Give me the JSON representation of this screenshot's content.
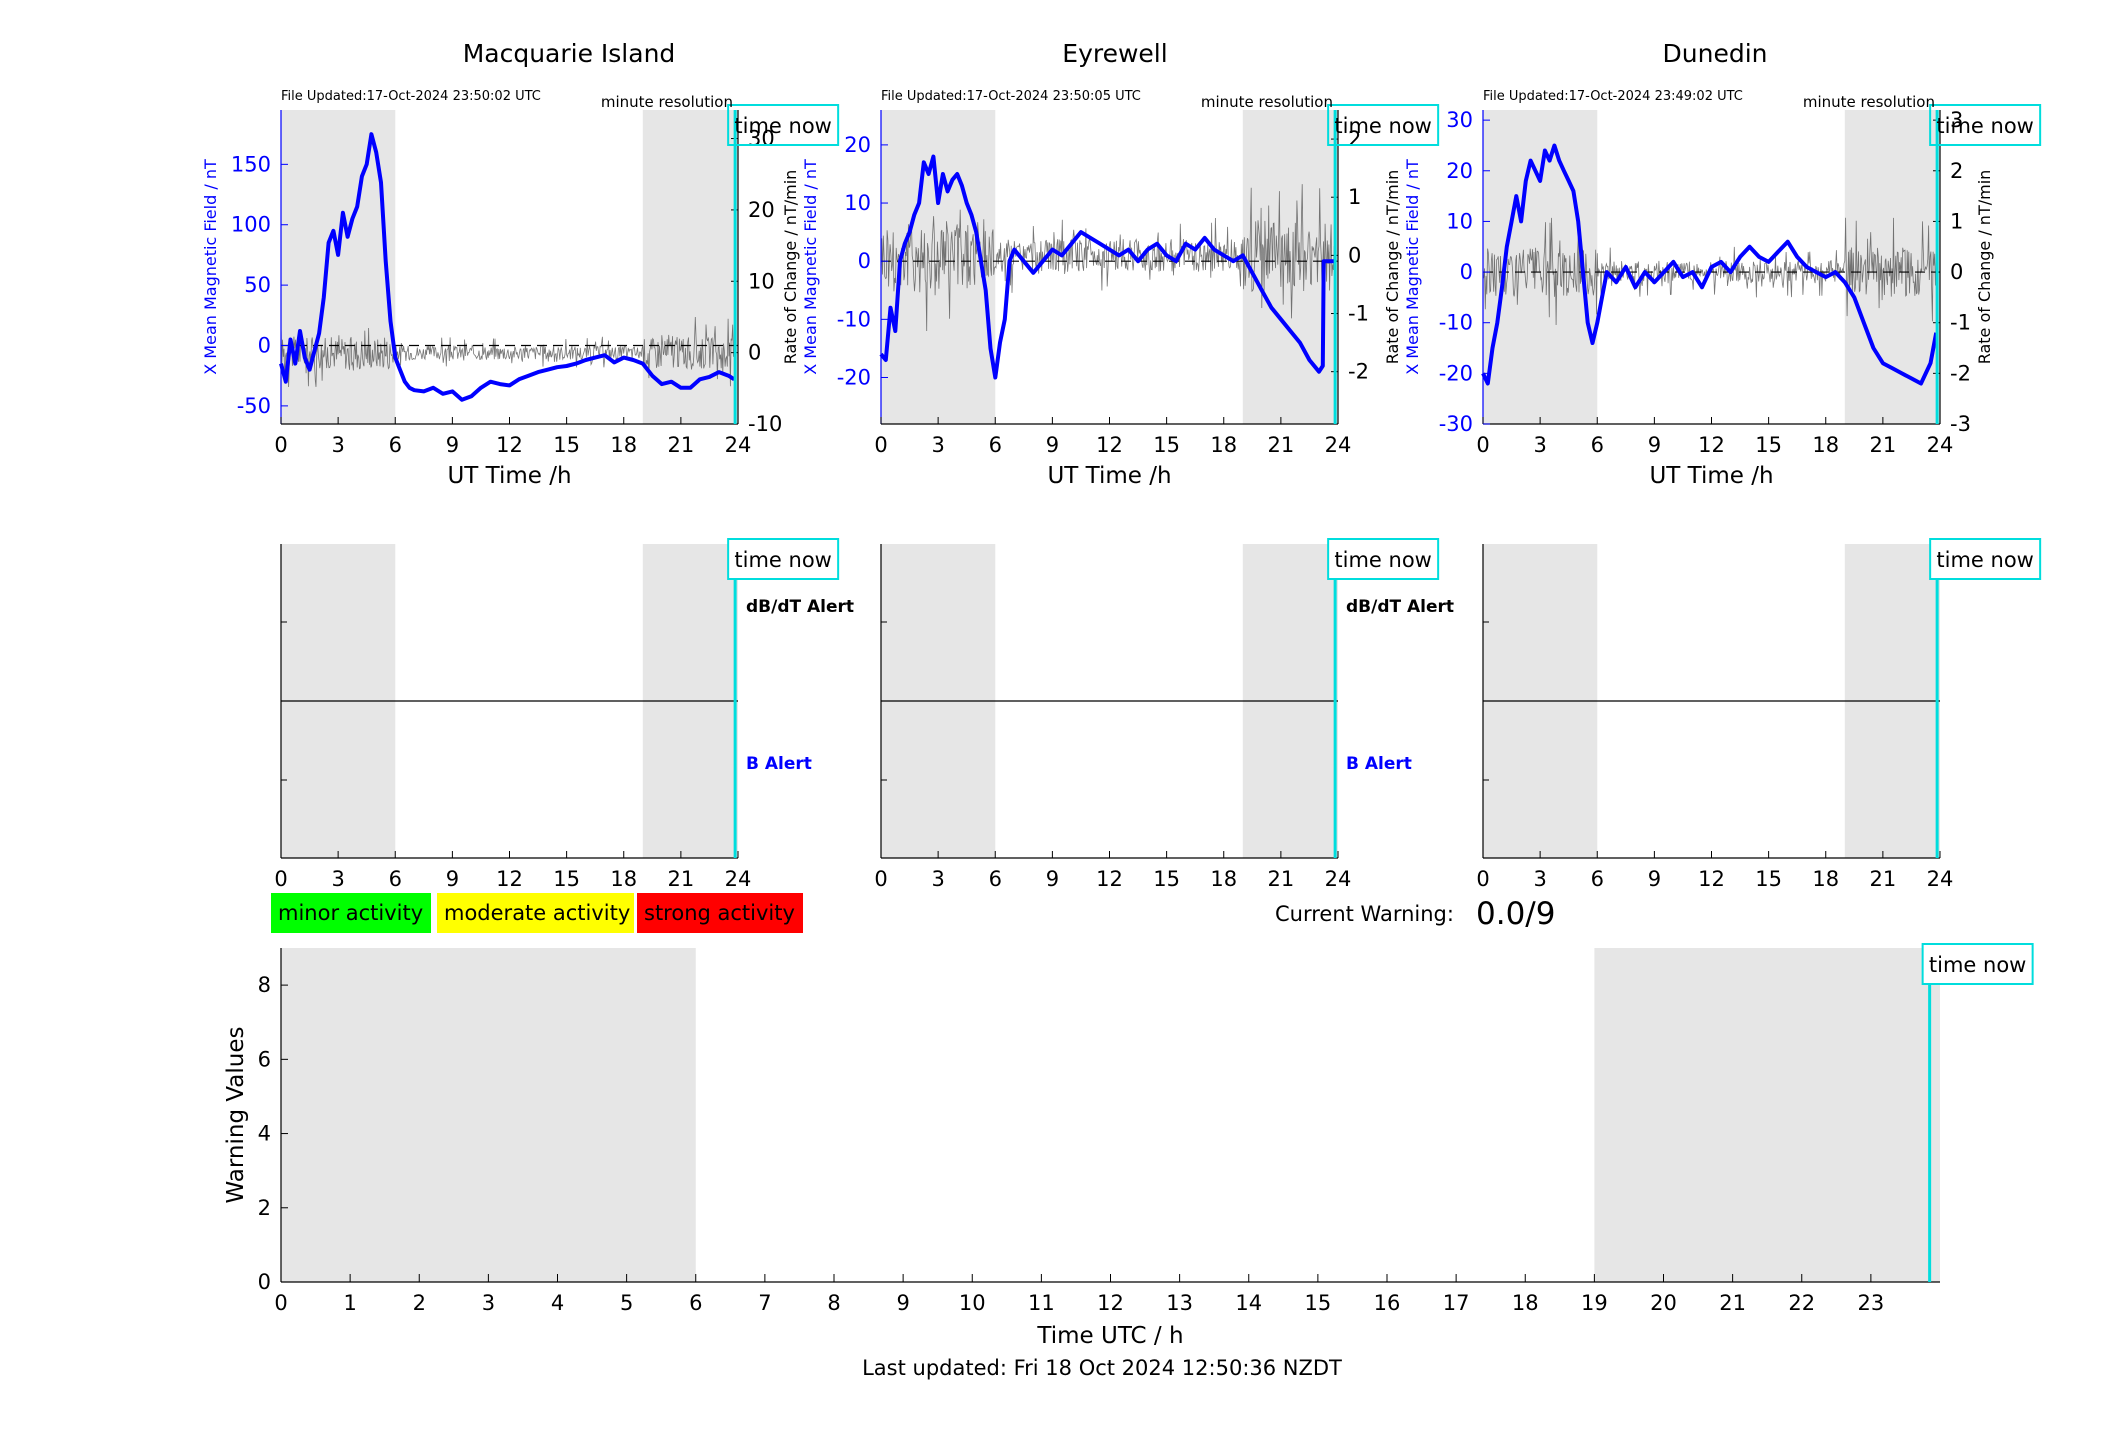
{
  "figure": {
    "last_updated": "Last updated: Fri 18 Oct 2024 12:50:36 NZDT",
    "current_warning_label": "Current Warning:",
    "current_warning_value": "0.0/9"
  },
  "colors": {
    "b_field": "#0000ff",
    "rate": "#555555",
    "shade": "#e6e6e6",
    "time_now": "#00dddd",
    "minor": "#00ff00",
    "moderate": "#ffff00",
    "strong": "#ff0000"
  },
  "legend": {
    "minor": "minor activity",
    "moderate": "moderate activity",
    "strong": "strong activity"
  },
  "chart_data": [
    {
      "type": "line",
      "title": "Macquarie Island",
      "file_updated": "File Updated:17-Oct-2024 23:50:02 UTC",
      "resolution": "minute resolution",
      "time_now_label": "time now",
      "time_now": 23.85,
      "xlabel": "UT Time /h",
      "ylabel": "X Mean Magnetic Field / nT",
      "y2label": "",
      "xlim": [
        0,
        24
      ],
      "xticks": [
        0,
        3,
        6,
        9,
        12,
        15,
        18,
        21,
        24
      ],
      "ylim": [
        -65,
        195
      ],
      "yticks": [
        -50,
        0,
        50,
        100,
        150
      ],
      "y2lim": [
        -10,
        34
      ],
      "y2ticks": [
        -10,
        0,
        10,
        20,
        30
      ],
      "shaded": [
        [
          0,
          6
        ],
        [
          19,
          24
        ]
      ],
      "series": [
        {
          "x": [
            0,
            0.25,
            0.5,
            0.75,
            1,
            1.25,
            1.5,
            1.75,
            2,
            2.25,
            2.5,
            2.75,
            3,
            3.25,
            3.5,
            3.75,
            4,
            4.25,
            4.5,
            4.75,
            5,
            5.25,
            5.5,
            5.75,
            6,
            6.25,
            6.5,
            6.75,
            7,
            7.5,
            8,
            8.5,
            9,
            9.5,
            10,
            10.5,
            11,
            11.5,
            12,
            12.5,
            13,
            13.5,
            14,
            14.5,
            15,
            15.5,
            16,
            16.5,
            17,
            17.5,
            18,
            18.5,
            19,
            19.5,
            20,
            20.5,
            21,
            21.5,
            22,
            22.5,
            23,
            23.5,
            23.8
          ],
          "values": [
            -15,
            -30,
            5,
            -15,
            12,
            -10,
            -20,
            -5,
            10,
            40,
            85,
            95,
            75,
            110,
            90,
            105,
            115,
            140,
            150,
            175,
            160,
            135,
            70,
            20,
            -10,
            -20,
            -30,
            -35,
            -37,
            -38,
            -35,
            -40,
            -38,
            -45,
            -42,
            -35,
            -30,
            -32,
            -33,
            -28,
            -25,
            -22,
            -20,
            -18,
            -17,
            -15,
            -12,
            -10,
            -8,
            -14,
            -10,
            -12,
            -15,
            -25,
            -32,
            -30,
            -35,
            -35,
            -28,
            -26,
            -22,
            -25,
            -28
          ]
        }
      ],
      "rate_range": 3.2,
      "mid_x": null
    },
    {
      "type": "line",
      "title": "Eyrewell",
      "file_updated": "File Updated:17-Oct-2024 23:50:05 UTC",
      "resolution": "minute resolution",
      "time_now_label": "time now",
      "time_now": 23.85,
      "xlabel": "UT Time /h",
      "ylabel": "X Mean Magnetic Field / nT",
      "y2label": "Rate of Change / nT/min",
      "xlim": [
        0,
        24
      ],
      "xticks": [
        0,
        3,
        6,
        9,
        12,
        15,
        18,
        21,
        24
      ],
      "ylim": [
        -28,
        26
      ],
      "yticks": [
        -20,
        -10,
        0,
        10,
        20
      ],
      "y2lim": [
        -2.9,
        2.5
      ],
      "y2ticks": [
        -2,
        -1,
        0,
        1,
        2
      ],
      "shaded": [
        [
          0,
          6
        ],
        [
          19,
          24
        ]
      ],
      "series": [
        {
          "x": [
            0,
            0.25,
            0.5,
            0.75,
            1,
            1.25,
            1.5,
            1.75,
            2,
            2.25,
            2.5,
            2.75,
            3,
            3.25,
            3.5,
            3.75,
            4,
            4.25,
            4.5,
            4.75,
            5,
            5.5,
            5.75,
            6,
            6.25,
            6.5,
            6.75,
            7,
            7.5,
            8,
            8.5,
            9,
            9.5,
            10,
            10.5,
            11,
            11.5,
            12,
            12.5,
            13,
            13.5,
            14,
            14.5,
            15,
            15.5,
            16,
            16.5,
            17,
            17.5,
            18,
            18.5,
            19,
            19.5,
            20,
            20.5,
            21,
            21.5,
            22,
            22.5,
            23,
            23.2,
            23.25,
            23.8
          ],
          "values": [
            -16,
            -17,
            -8,
            -12,
            0,
            3,
            5,
            8,
            10,
            17,
            15,
            18,
            10,
            15,
            12,
            14,
            15,
            13,
            10,
            8,
            5,
            -5,
            -15,
            -20,
            -14,
            -10,
            0,
            2,
            0,
            -2,
            0,
            2,
            1,
            3,
            5,
            4,
            3,
            2,
            1,
            2,
            0,
            2,
            3,
            1,
            0,
            3,
            2,
            4,
            2,
            1,
            0,
            1,
            -2,
            -5,
            -8,
            -10,
            -12,
            -14,
            -17,
            -19,
            -18,
            0,
            0
          ]
        }
      ],
      "rate_range": 0.9,
      "mid_x": null
    },
    {
      "type": "line",
      "title": "Dunedin",
      "file_updated": "File Updated:17-Oct-2024 23:49:02 UTC",
      "resolution": "minute resolution",
      "time_now_label": "time now",
      "time_now": 23.85,
      "xlabel": "UT Time /h",
      "ylabel": "X Mean Magnetic Field / nT",
      "y2label": "Rate of Change / nT/min",
      "xlim": [
        0,
        24
      ],
      "xticks": [
        0,
        3,
        6,
        9,
        12,
        15,
        18,
        21,
        24
      ],
      "ylim": [
        -30,
        32
      ],
      "yticks": [
        -30,
        -20,
        -10,
        0,
        10,
        20,
        30
      ],
      "y2lim": [
        -3,
        3.2
      ],
      "y2ticks": [
        -3,
        -2,
        -1,
        0,
        1,
        2,
        3
      ],
      "shaded": [
        [
          0,
          6
        ],
        [
          19,
          24
        ]
      ],
      "series": [
        {
          "x": [
            0,
            0.25,
            0.5,
            0.75,
            1,
            1.25,
            1.5,
            1.75,
            2,
            2.25,
            2.5,
            2.75,
            3,
            3.25,
            3.5,
            3.75,
            4,
            4.25,
            4.5,
            4.75,
            5,
            5.25,
            5.5,
            5.75,
            6,
            6.25,
            6.5,
            7,
            7.5,
            8,
            8.5,
            9,
            9.5,
            10,
            10.5,
            11,
            11.5,
            12,
            12.5,
            13,
            13.5,
            14,
            14.5,
            15,
            15.5,
            16,
            16.5,
            17,
            17.5,
            18,
            18.5,
            19,
            19.5,
            20,
            20.5,
            21,
            21.5,
            22,
            22.5,
            23,
            23.5,
            23.8
          ],
          "values": [
            -20,
            -22,
            -15,
            -10,
            -3,
            5,
            10,
            15,
            10,
            18,
            22,
            20,
            18,
            24,
            22,
            25,
            22,
            20,
            18,
            16,
            10,
            0,
            -10,
            -14,
            -10,
            -5,
            0,
            -2,
            1,
            -3,
            0,
            -2,
            0,
            2,
            -1,
            0,
            -3,
            1,
            2,
            0,
            3,
            5,
            3,
            2,
            4,
            6,
            3,
            1,
            0,
            -1,
            0,
            -2,
            -5,
            -10,
            -15,
            -18,
            -19,
            -20,
            -21,
            -22,
            -18,
            -12
          ]
        }
      ],
      "rate_range": 0.7,
      "mid_x": null
    },
    {
      "type": "line",
      "title": "",
      "time_now_label": "time now",
      "time_now": 23.85,
      "alert_db": "dB/dT Alert",
      "alert_b": "B Alert",
      "xlim": [
        0,
        24
      ],
      "xticks": [
        0,
        3,
        6,
        9,
        12,
        15,
        18,
        21,
        24
      ],
      "shaded": [
        [
          0,
          6
        ],
        [
          19,
          24
        ]
      ],
      "mid_value": 0
    },
    {
      "type": "line",
      "title": "",
      "time_now_label": "time now",
      "time_now": 23.85,
      "alert_db": "dB/dT Alert",
      "alert_b": "B Alert",
      "xlim": [
        0,
        24
      ],
      "xticks": [
        0,
        3,
        6,
        9,
        12,
        15,
        18,
        21,
        24
      ],
      "shaded": [
        [
          0,
          6
        ],
        [
          19,
          24
        ]
      ],
      "mid_value": 0
    },
    {
      "type": "line",
      "title": "",
      "time_now_label": "time now",
      "time_now": 23.85,
      "alert_db": "",
      "alert_b": "",
      "xlim": [
        0,
        24
      ],
      "xticks": [
        0,
        3,
        6,
        9,
        12,
        15,
        18,
        21,
        24
      ],
      "shaded": [
        [
          0,
          6
        ],
        [
          19,
          24
        ]
      ],
      "mid_value": 0
    },
    {
      "type": "bar",
      "title": "",
      "time_now_label": "time now",
      "time_now": 23.85,
      "xlabel": "Time UTC / h",
      "ylabel": "Warning Values",
      "xlim": [
        0,
        24
      ],
      "xticks": [
        0,
        1,
        2,
        3,
        4,
        5,
        6,
        7,
        8,
        9,
        10,
        11,
        12,
        13,
        14,
        15,
        16,
        17,
        18,
        19,
        20,
        21,
        22,
        23
      ],
      "ylim": [
        0,
        9
      ],
      "yticks": [
        0,
        2,
        4,
        6,
        8
      ],
      "shaded": [
        [
          0,
          6
        ],
        [
          19,
          24
        ]
      ],
      "values": []
    }
  ]
}
